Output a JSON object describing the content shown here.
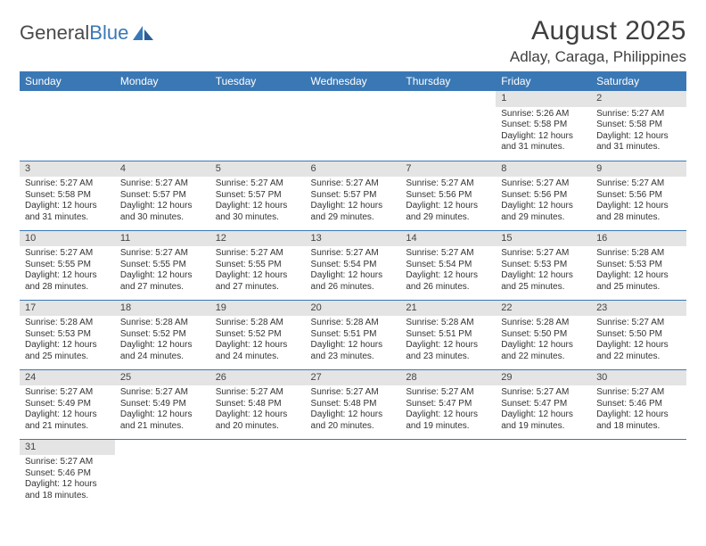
{
  "logo": {
    "text1": "General",
    "text2": "Blue"
  },
  "title": "August 2025",
  "location": "Adlay, Caraga, Philippines",
  "colors": {
    "header_bg": "#3a78b5",
    "header_fg": "#ffffff",
    "daynum_bg": "#e4e4e4",
    "text": "#333333",
    "logo_gray": "#4a4a4a",
    "logo_blue": "#3a78b5",
    "row_border": "#3a78b5"
  },
  "weekdays": [
    "Sunday",
    "Monday",
    "Tuesday",
    "Wednesday",
    "Thursday",
    "Friday",
    "Saturday"
  ],
  "grid": [
    [
      null,
      null,
      null,
      null,
      null,
      {
        "n": "1",
        "sr": "5:26 AM",
        "ss": "5:58 PM",
        "dl": "12 hours and 31 minutes."
      },
      {
        "n": "2",
        "sr": "5:27 AM",
        "ss": "5:58 PM",
        "dl": "12 hours and 31 minutes."
      }
    ],
    [
      {
        "n": "3",
        "sr": "5:27 AM",
        "ss": "5:58 PM",
        "dl": "12 hours and 31 minutes."
      },
      {
        "n": "4",
        "sr": "5:27 AM",
        "ss": "5:57 PM",
        "dl": "12 hours and 30 minutes."
      },
      {
        "n": "5",
        "sr": "5:27 AM",
        "ss": "5:57 PM",
        "dl": "12 hours and 30 minutes."
      },
      {
        "n": "6",
        "sr": "5:27 AM",
        "ss": "5:57 PM",
        "dl": "12 hours and 29 minutes."
      },
      {
        "n": "7",
        "sr": "5:27 AM",
        "ss": "5:56 PM",
        "dl": "12 hours and 29 minutes."
      },
      {
        "n": "8",
        "sr": "5:27 AM",
        "ss": "5:56 PM",
        "dl": "12 hours and 29 minutes."
      },
      {
        "n": "9",
        "sr": "5:27 AM",
        "ss": "5:56 PM",
        "dl": "12 hours and 28 minutes."
      }
    ],
    [
      {
        "n": "10",
        "sr": "5:27 AM",
        "ss": "5:55 PM",
        "dl": "12 hours and 28 minutes."
      },
      {
        "n": "11",
        "sr": "5:27 AM",
        "ss": "5:55 PM",
        "dl": "12 hours and 27 minutes."
      },
      {
        "n": "12",
        "sr": "5:27 AM",
        "ss": "5:55 PM",
        "dl": "12 hours and 27 minutes."
      },
      {
        "n": "13",
        "sr": "5:27 AM",
        "ss": "5:54 PM",
        "dl": "12 hours and 26 minutes."
      },
      {
        "n": "14",
        "sr": "5:27 AM",
        "ss": "5:54 PM",
        "dl": "12 hours and 26 minutes."
      },
      {
        "n": "15",
        "sr": "5:27 AM",
        "ss": "5:53 PM",
        "dl": "12 hours and 25 minutes."
      },
      {
        "n": "16",
        "sr": "5:28 AM",
        "ss": "5:53 PM",
        "dl": "12 hours and 25 minutes."
      }
    ],
    [
      {
        "n": "17",
        "sr": "5:28 AM",
        "ss": "5:53 PM",
        "dl": "12 hours and 25 minutes."
      },
      {
        "n": "18",
        "sr": "5:28 AM",
        "ss": "5:52 PM",
        "dl": "12 hours and 24 minutes."
      },
      {
        "n": "19",
        "sr": "5:28 AM",
        "ss": "5:52 PM",
        "dl": "12 hours and 24 minutes."
      },
      {
        "n": "20",
        "sr": "5:28 AM",
        "ss": "5:51 PM",
        "dl": "12 hours and 23 minutes."
      },
      {
        "n": "21",
        "sr": "5:28 AM",
        "ss": "5:51 PM",
        "dl": "12 hours and 23 minutes."
      },
      {
        "n": "22",
        "sr": "5:28 AM",
        "ss": "5:50 PM",
        "dl": "12 hours and 22 minutes."
      },
      {
        "n": "23",
        "sr": "5:27 AM",
        "ss": "5:50 PM",
        "dl": "12 hours and 22 minutes."
      }
    ],
    [
      {
        "n": "24",
        "sr": "5:27 AM",
        "ss": "5:49 PM",
        "dl": "12 hours and 21 minutes."
      },
      {
        "n": "25",
        "sr": "5:27 AM",
        "ss": "5:49 PM",
        "dl": "12 hours and 21 minutes."
      },
      {
        "n": "26",
        "sr": "5:27 AM",
        "ss": "5:48 PM",
        "dl": "12 hours and 20 minutes."
      },
      {
        "n": "27",
        "sr": "5:27 AM",
        "ss": "5:48 PM",
        "dl": "12 hours and 20 minutes."
      },
      {
        "n": "28",
        "sr": "5:27 AM",
        "ss": "5:47 PM",
        "dl": "12 hours and 19 minutes."
      },
      {
        "n": "29",
        "sr": "5:27 AM",
        "ss": "5:47 PM",
        "dl": "12 hours and 19 minutes."
      },
      {
        "n": "30",
        "sr": "5:27 AM",
        "ss": "5:46 PM",
        "dl": "12 hours and 18 minutes."
      }
    ],
    [
      {
        "n": "31",
        "sr": "5:27 AM",
        "ss": "5:46 PM",
        "dl": "12 hours and 18 minutes."
      },
      null,
      null,
      null,
      null,
      null,
      null
    ]
  ],
  "labels": {
    "sunrise": "Sunrise:",
    "sunset": "Sunset:",
    "daylight": "Daylight:"
  }
}
